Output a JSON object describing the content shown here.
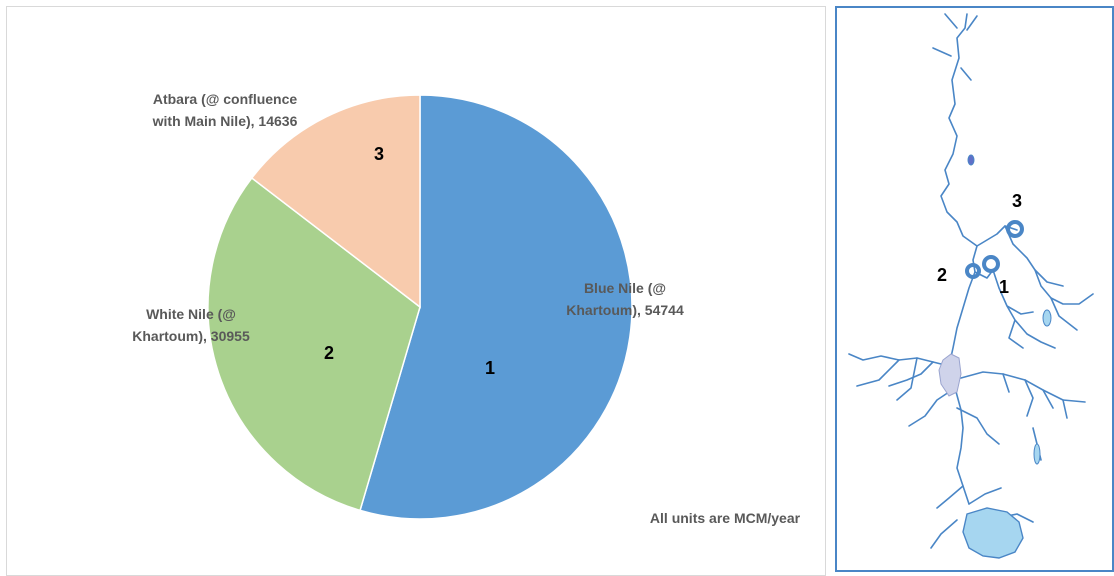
{
  "chart_data": {
    "type": "pie",
    "slices": [
      {
        "name": "Blue Nile (@ Khartoum)",
        "value": 54744,
        "color": "#5b9bd5",
        "number": "1",
        "label_lines": [
          "Blue Nile (@",
          "Khartoum), 54744"
        ]
      },
      {
        "name": "White Nile (@ Khartoum)",
        "value": 30955,
        "color": "#a9d18e",
        "number": "2",
        "label_lines": [
          "White Nile (@",
          "Khartoum), 30955"
        ]
      },
      {
        "name": "Atbara (@ confluence with Main Nile)",
        "value": 14636,
        "color": "#f8cbad",
        "number": "3",
        "label_lines": [
          "Atbara (@ confluence",
          "with Main Nile), 14636"
        ]
      }
    ],
    "note": "All units are MCM/year"
  },
  "map": {
    "markers": [
      "1",
      "2",
      "3"
    ],
    "colors": {
      "river": "#4a86c6",
      "lake": "#a6d6f0",
      "marker": "#4a86c6"
    }
  }
}
